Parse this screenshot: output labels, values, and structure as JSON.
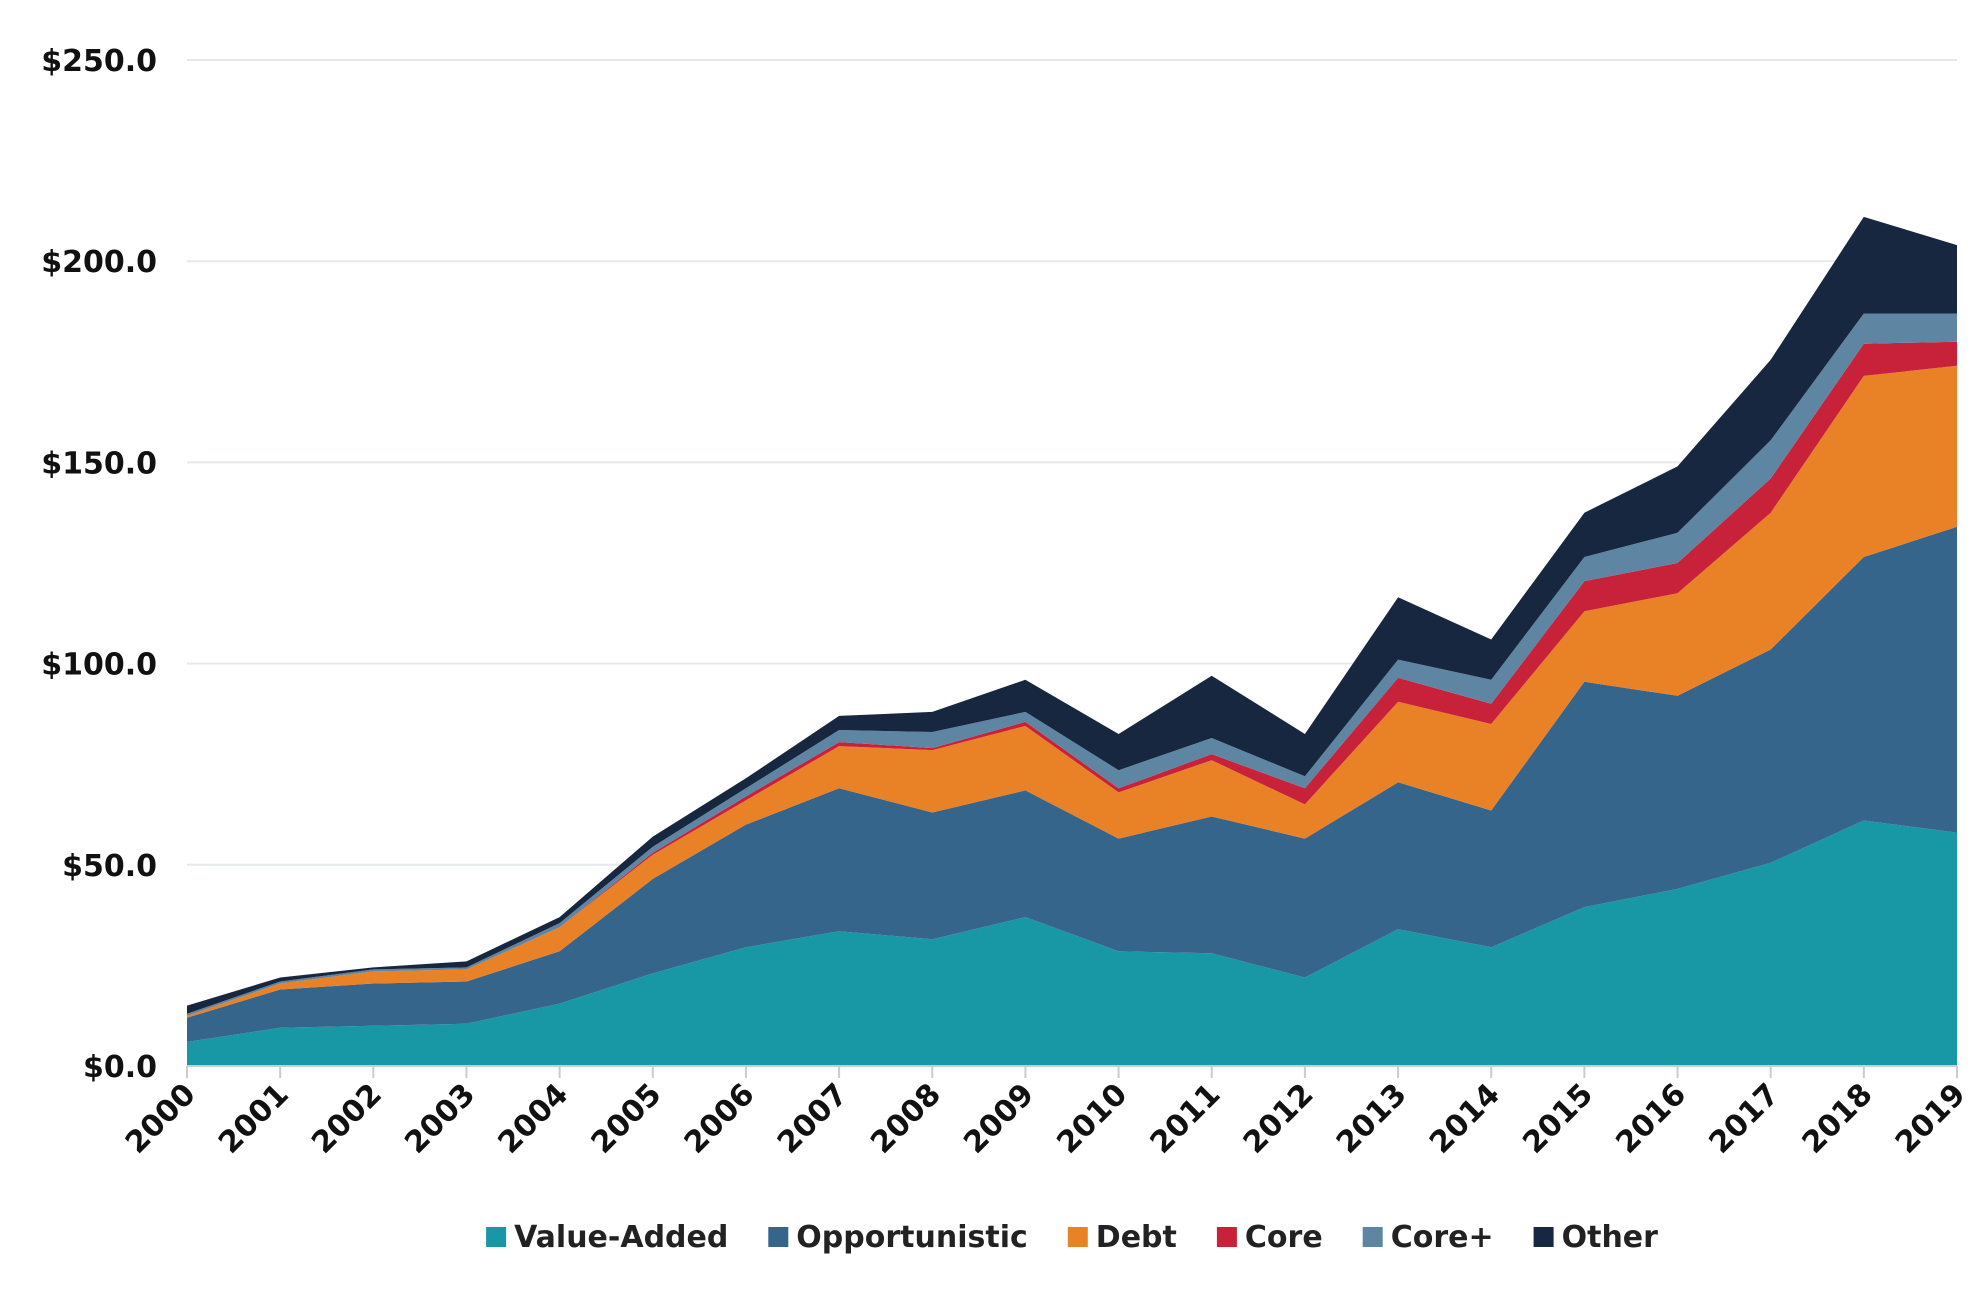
{
  "chart_data": {
    "type": "area",
    "stacked": true,
    "title": "",
    "xlabel": "",
    "ylabel": "",
    "ylim": [
      0,
      250
    ],
    "y_ticks": [
      "$0.0",
      "$50.0",
      "$100.0",
      "$150.0",
      "$200.0",
      "$250.0"
    ],
    "grid": true,
    "legend_position": "bottom",
    "categories": [
      "2000",
      "2001",
      "2002",
      "2003",
      "2004",
      "2005",
      "2006",
      "2007",
      "2008",
      "2009",
      "2010",
      "2011",
      "2012",
      "2013",
      "2014",
      "2015",
      "2016",
      "2017",
      "2018",
      "2019"
    ],
    "series": [
      {
        "name": "Value-Added",
        "color": "#1897a5",
        "values": [
          6,
          9.5,
          10,
          10.5,
          15.5,
          23,
          29.5,
          33.5,
          31.5,
          37,
          28.5,
          28,
          22,
          34,
          29.5,
          39.5,
          44,
          50.5,
          61,
          58
        ]
      },
      {
        "name": "Opportunistic",
        "color": "#36658c",
        "values": [
          6,
          9.5,
          10.5,
          10.5,
          13,
          23.5,
          30.5,
          35.5,
          31.5,
          31.5,
          28,
          34,
          34.5,
          36.5,
          34,
          56,
          48,
          53,
          65.5,
          76
        ]
      },
      {
        "name": "Debt",
        "color": "#e98126",
        "values": [
          0.5,
          1.5,
          3,
          3,
          6,
          6,
          6,
          10.5,
          15.5,
          16,
          11.5,
          14,
          8.5,
          20,
          21.5,
          17.5,
          25.5,
          34,
          45,
          40
        ]
      },
      {
        "name": "Core",
        "color": "#c8223a",
        "values": [
          0,
          0,
          0,
          0,
          0,
          0.5,
          1,
          1,
          0.5,
          1,
          1,
          1.5,
          4,
          6,
          5,
          7.5,
          7.5,
          8.5,
          8,
          6
        ]
      },
      {
        "name": "Core+",
        "color": "#5e85a2",
        "values": [
          0.5,
          0.5,
          0.5,
          0.5,
          1,
          1.5,
          2,
          3,
          4,
          2.5,
          4.5,
          4,
          3,
          4.5,
          6,
          6,
          7.5,
          9.5,
          7.5,
          7
        ]
      },
      {
        "name": "Other",
        "color": "#16273f",
        "values": [
          2,
          1,
          0.5,
          1.5,
          1.5,
          2.5,
          2.5,
          3.5,
          5,
          8,
          9,
          15.5,
          10.5,
          15.5,
          10,
          11,
          16.5,
          20,
          24,
          17
        ]
      }
    ]
  }
}
